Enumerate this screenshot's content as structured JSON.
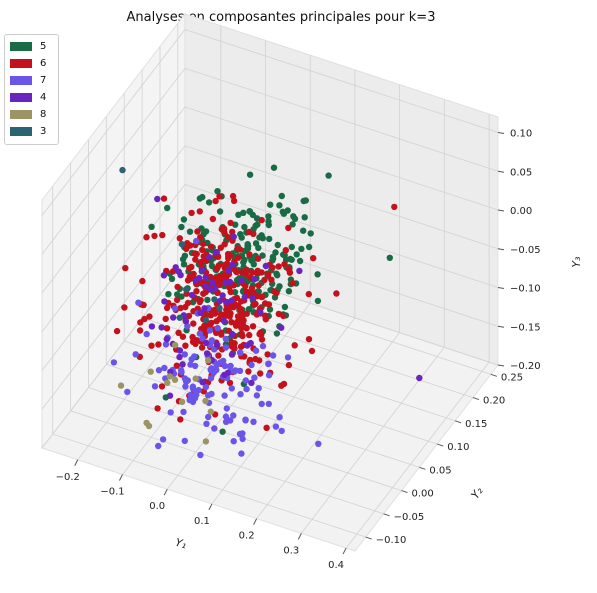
{
  "chart_data": {
    "type": "scatter",
    "projection": "3d",
    "title": "Analyses en composantes principales pour k=3",
    "xlabel": "Y₁",
    "ylabel": "Y₂",
    "zlabel": "Y₃",
    "xlim": [
      -0.28,
      0.42
    ],
    "ylim": [
      -0.13,
      0.27
    ],
    "zlim": [
      -0.2,
      0.12
    ],
    "x_ticks": [
      "−0.2",
      "−0.1",
      "0.0",
      "0.1",
      "0.2",
      "0.3",
      "0.4"
    ],
    "y_ticks": [
      "−0.10",
      "−0.05",
      "0.00",
      "0.05",
      "0.10",
      "0.15",
      "0.20",
      "0.25"
    ],
    "z_ticks": [
      "−0.20",
      "−0.15",
      "−0.10",
      "−0.05",
      "0.00",
      "0.05",
      "0.10"
    ],
    "grid": true,
    "legend_position": "upper-left",
    "series": [
      {
        "name": "5",
        "color": "#186b45",
        "center": [
          0.02,
          0.06,
          -0.02
        ],
        "spread": [
          0.07,
          0.05,
          0.035
        ],
        "count": 230,
        "outliers": [
          [
            0.25,
            0.18,
            -0.04
          ],
          [
            0.02,
            0.0,
            -0.2
          ],
          [
            -0.12,
            0.02,
            0.05
          ]
        ]
      },
      {
        "name": "6",
        "color": "#c4121c",
        "center": [
          0.0,
          0.02,
          -0.05
        ],
        "spread": [
          0.07,
          0.045,
          0.04
        ],
        "count": 320,
        "outliers": [
          [
            0.22,
            0.23,
            -0.01
          ],
          [
            -0.2,
            -0.02,
            -0.1
          ]
        ]
      },
      {
        "name": "7",
        "color": "#6a55e8",
        "center": [
          0.02,
          -0.02,
          -0.12
        ],
        "spread": [
          0.08,
          0.04,
          0.035
        ],
        "count": 120,
        "outliers": [
          [
            0.25,
            -0.02,
            -0.16
          ]
        ]
      },
      {
        "name": "4",
        "color": "#6a24c0",
        "center": [
          -0.02,
          0.02,
          -0.06
        ],
        "spread": [
          0.07,
          0.05,
          0.045
        ],
        "count": 60,
        "outliers": [
          [
            0.34,
            0.15,
            -0.16
          ],
          [
            -0.15,
            0.03,
            0.05
          ]
        ]
      },
      {
        "name": "8",
        "color": "#9b9566",
        "center": [
          -0.05,
          -0.03,
          -0.14
        ],
        "spread": [
          0.05,
          0.03,
          0.03
        ],
        "count": 14,
        "outliers": []
      },
      {
        "name": "3",
        "color": "#2a6373",
        "center": [
          -0.08,
          0.03,
          -0.05
        ],
        "spread": [
          0.04,
          0.03,
          0.03
        ],
        "count": 6,
        "outliers": [
          [
            -0.22,
            0.02,
            0.08
          ]
        ]
      }
    ]
  }
}
